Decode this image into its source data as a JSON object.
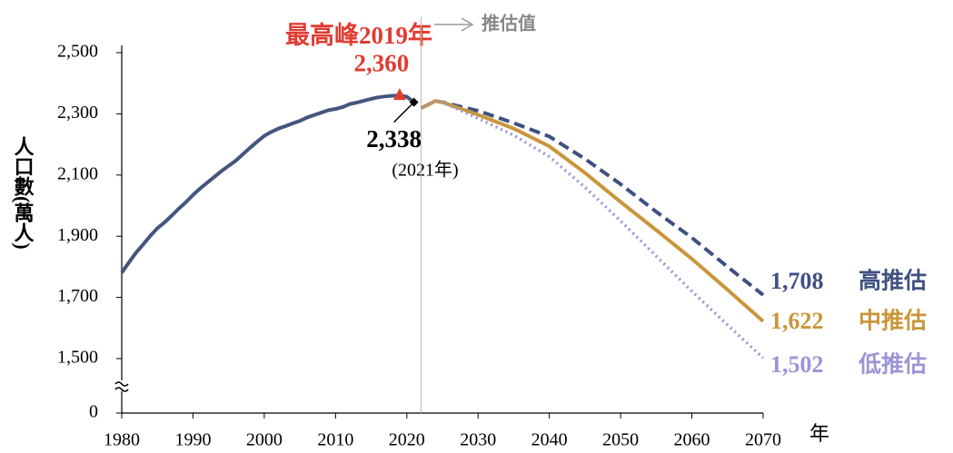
{
  "chart_data": {
    "type": "line",
    "annotations": {
      "peak": "最高峰2019年",
      "latest_year": "(2021年)",
      "projection": "推估值"
    },
    "ylabel": "人口數(萬人)",
    "xlabel": "年",
    "xlim": [
      1980,
      2070
    ],
    "xticks": [
      1980,
      1990,
      2000,
      2010,
      2020,
      2030,
      2040,
      2050,
      2060,
      2070
    ],
    "ylim": [
      0,
      2500
    ],
    "yticks": [
      0,
      {
        "value": 1500,
        "label": "1,500"
      },
      {
        "value": 1700,
        "label": "1,700"
      },
      {
        "value": 1900,
        "label": "1,900"
      },
      {
        "value": 2100,
        "label": "2,100"
      },
      {
        "value": 2300,
        "label": "2,300"
      },
      {
        "value": 2500,
        "label": "2,500"
      }
    ],
    "axis_break": true,
    "projection_start": 2022,
    "series": [
      {
        "color": "#44557f",
        "style": "solid",
        "x": [
          1980,
          1981,
          1982,
          1983,
          1984,
          1985,
          1986,
          1987,
          1988,
          1989,
          1990,
          1991,
          1992,
          1993,
          1994,
          1995,
          1996,
          1997,
          1998,
          1999,
          2000,
          2001,
          2002,
          2003,
          2004,
          2005,
          2006,
          2007,
          2008,
          2009,
          2010,
          2011,
          2012,
          2013,
          2014,
          2015,
          2016,
          2017,
          2018,
          2019,
          2020,
          2021
        ],
        "values": [
          1781,
          1814,
          1846,
          1873,
          1901,
          1926,
          1945,
          1967,
          1990,
          2011,
          2035,
          2056,
          2075,
          2094,
          2113,
          2130,
          2147,
          2168,
          2189,
          2209,
          2228,
          2241,
          2252,
          2260,
          2269,
          2277,
          2288,
          2296,
          2304,
          2312,
          2316,
          2322,
          2332,
          2337,
          2343,
          2349,
          2354,
          2357,
          2359,
          2360,
          2356,
          2338
        ],
        "value_labels": [
          null,
          null,
          null,
          null,
          null,
          null,
          null,
          null,
          null,
          null,
          null,
          null,
          null,
          null,
          null,
          null,
          null,
          null,
          null,
          null,
          null,
          null,
          null,
          null,
          null,
          null,
          null,
          null,
          null,
          null,
          null,
          null,
          null,
          null,
          null,
          null,
          null,
          null,
          null,
          "2,360",
          null,
          "2,338"
        ]
      },
      {
        "name": "高推估",
        "color": "#3f5181",
        "style": "dashed",
        "x": [
          2022,
          2023,
          2024,
          2025,
          2030,
          2035,
          2040,
          2045,
          2050,
          2055,
          2060,
          2065,
          2070
        ],
        "values": [
          2319,
          2330,
          2342,
          2338,
          2310,
          2270,
          2226,
          2153,
          2070,
          1980,
          1895,
          1800,
          1708
        ],
        "value_labels": [
          null,
          null,
          null,
          null,
          null,
          null,
          null,
          null,
          null,
          null,
          null,
          null,
          "1,708"
        ]
      },
      {
        "name": "中推估",
        "color": "#c9963a",
        "style": "solid",
        "x": [
          2022,
          2023,
          2024,
          2025,
          2030,
          2035,
          2040,
          2045,
          2050,
          2055,
          2060,
          2065,
          2070
        ],
        "values": [
          2319,
          2330,
          2342,
          2338,
          2297,
          2252,
          2194,
          2107,
          2012,
          1920,
          1826,
          1725,
          1622
        ],
        "value_labels": [
          null,
          null,
          null,
          null,
          null,
          null,
          null,
          null,
          null,
          null,
          null,
          null,
          "1,622"
        ]
      },
      {
        "name": "低推估",
        "color": "#9b95d6",
        "style": "dotted",
        "x": [
          2022,
          2023,
          2024,
          2025,
          2030,
          2035,
          2040,
          2045,
          2050,
          2055,
          2060,
          2065,
          2070
        ],
        "values": [
          2319,
          2330,
          2342,
          2338,
          2285,
          2230,
          2160,
          2060,
          1950,
          1835,
          1720,
          1610,
          1502
        ],
        "value_labels": [
          null,
          null,
          null,
          null,
          null,
          null,
          null,
          null,
          null,
          null,
          null,
          null,
          "1,502"
        ]
      }
    ]
  }
}
